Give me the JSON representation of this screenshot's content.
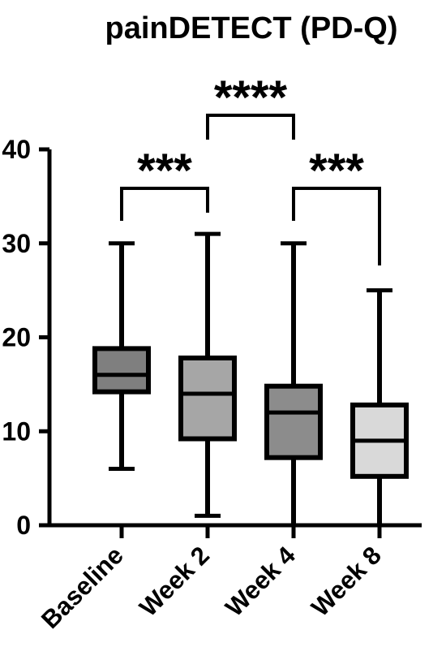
{
  "chart_data": {
    "type": "box",
    "title": "painDETECT (PD-Q)",
    "xlabel": "",
    "ylabel": "",
    "ylim": [
      0,
      40
    ],
    "yticks": [
      0,
      10,
      20,
      30,
      40
    ],
    "categories": [
      "Baseline",
      "Week 2",
      "Week 4",
      "Week 8"
    ],
    "boxes": [
      {
        "category": "Baseline",
        "min": 6,
        "q1": 14.2,
        "median": 16,
        "q3": 18.8,
        "max": 30,
        "fill": "#7f7f7f"
      },
      {
        "category": "Week 2",
        "min": 1,
        "q1": 9.2,
        "median": 14,
        "q3": 17.8,
        "max": 31,
        "fill": "#a6a6a6"
      },
      {
        "category": "Week 4",
        "min": 0,
        "q1": 7.2,
        "median": 12,
        "q3": 14.8,
        "max": 30,
        "fill": "#8c8c8c"
      },
      {
        "category": "Week 8",
        "min": 0,
        "q1": 5.2,
        "median": 9,
        "q3": 12.8,
        "max": 25,
        "fill": "#d9d9d9"
      }
    ],
    "comparisons": [
      {
        "from": "Baseline",
        "to": "Week 2",
        "label": "***"
      },
      {
        "from": "Week 2",
        "to": "Week 4",
        "label": "****"
      },
      {
        "from": "Week 4",
        "to": "Week 8",
        "label": "***"
      }
    ],
    "grid": false,
    "legend": "none"
  }
}
